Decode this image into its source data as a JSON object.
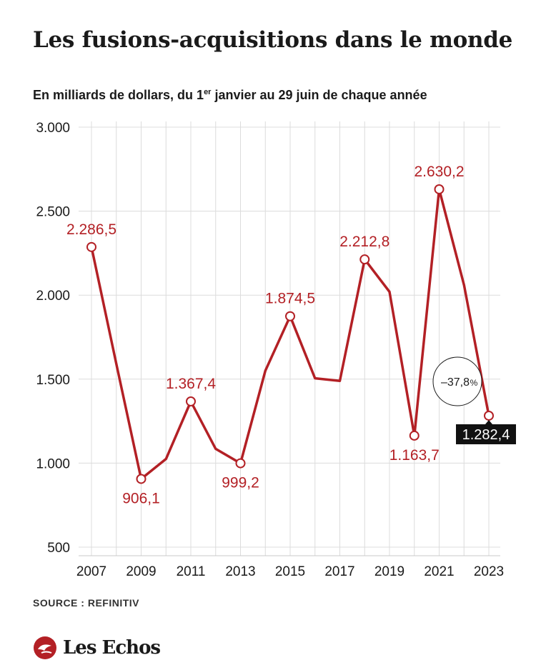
{
  "title": "Les fusions-acquisitions dans le monde",
  "subtitle": {
    "before": "En milliards de dollars, du 1",
    "sup": "er",
    "after": " janvier au 29 juin de chaque année"
  },
  "source": "SOURCE : REFINITIV",
  "brand": "Les Echos",
  "colors": {
    "line": "#b32025",
    "grid": "#dcdcdc",
    "highlight_bg": "#111111",
    "text": "#1a1a1a"
  },
  "chart_data": {
    "type": "line",
    "x": [
      2007,
      2008,
      2009,
      2010,
      2011,
      2012,
      2013,
      2014,
      2015,
      2016,
      2017,
      2018,
      2019,
      2020,
      2021,
      2022,
      2023
    ],
    "series": [
      {
        "values": [
          2286.5,
          1590,
          906.1,
          1025,
          1367.4,
          1085,
          999.2,
          1550,
          1874.5,
          1505,
          1490,
          2212.8,
          2020,
          1163.7,
          2630.2,
          2060,
          1282.4
        ]
      }
    ],
    "xticks": [
      2007,
      2009,
      2011,
      2013,
      2015,
      2017,
      2019,
      2021,
      2023
    ],
    "yticks": [
      500,
      1000,
      1500,
      2000,
      2500,
      3000
    ],
    "ytick_labels": [
      "500",
      "1.000",
      "1.500",
      "2.000",
      "2.500",
      "3.000"
    ],
    "ylim": [
      500,
      3000
    ],
    "xlim": [
      2007,
      2023
    ],
    "grid": true,
    "labeled_points": [
      {
        "x": 2007,
        "label": "2.286,5",
        "position": "above"
      },
      {
        "x": 2009,
        "label": "906,1",
        "position": "below"
      },
      {
        "x": 2011,
        "label": "1.367,4",
        "position": "above"
      },
      {
        "x": 2013,
        "label": "999,2",
        "position": "below"
      },
      {
        "x": 2015,
        "label": "1.874,5",
        "position": "above"
      },
      {
        "x": 2018,
        "label": "2.212,8",
        "position": "above"
      },
      {
        "x": 2020,
        "label": "1.163,7",
        "position": "below"
      },
      {
        "x": 2021,
        "label": "2.630,2",
        "position": "above"
      },
      {
        "x": 2023,
        "label": "1.282,4",
        "position": "below",
        "highlight": true
      }
    ],
    "annotation": {
      "text": "–37,8",
      "unit": "%"
    }
  }
}
